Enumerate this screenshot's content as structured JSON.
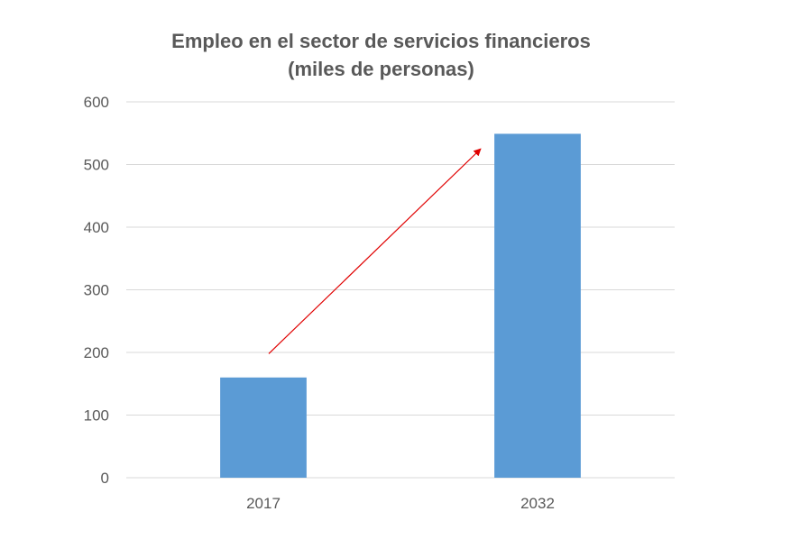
{
  "chart_data": {
    "type": "bar",
    "title_lines": [
      "Empleo en el sector de servicios financieros",
      "(miles de personas)"
    ],
    "categories": [
      "2017",
      "2032"
    ],
    "values": [
      160,
      549
    ],
    "ylim": [
      0,
      600
    ],
    "yticks": [
      0,
      100,
      200,
      300,
      400,
      500,
      600
    ],
    "ytick_labels": [
      "0",
      "100",
      "200",
      "300",
      "400",
      "500",
      "600"
    ],
    "grid": true,
    "legend": "none",
    "annotation": {
      "type": "arrow",
      "from": {
        "category": "2017",
        "y": 198
      },
      "to": {
        "category": "2032",
        "y": 525
      },
      "color": "#e00000"
    },
    "colors": {
      "bar": "#5b9bd5",
      "grid": "#d9d9d9",
      "axis": "#d9d9d9",
      "text": "#595959"
    }
  }
}
